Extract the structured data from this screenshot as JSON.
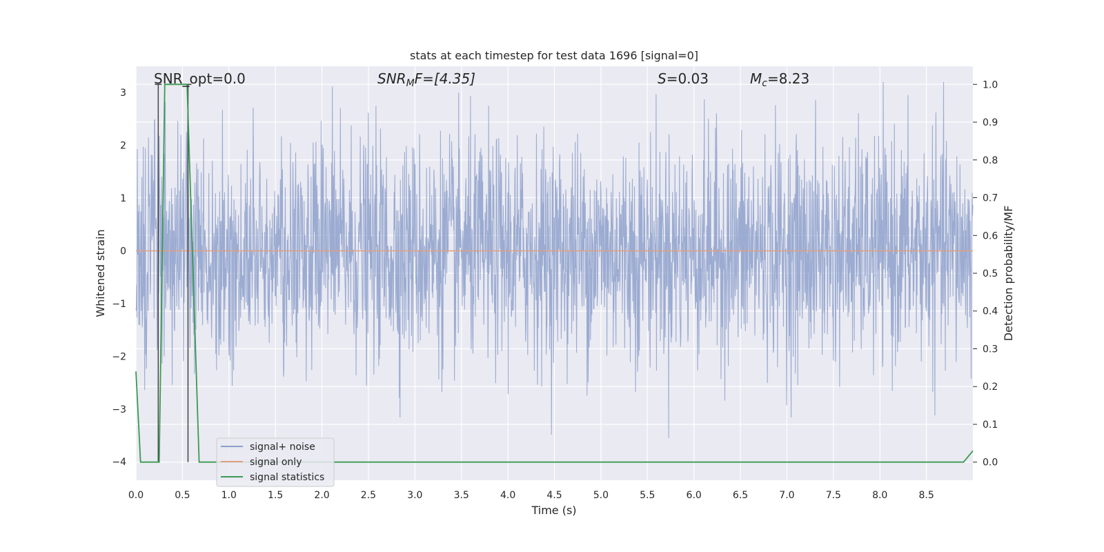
{
  "chart_data": {
    "type": "line",
    "title": "stats at each timestep for test data 1696 [signal=0]",
    "xlabel": "Time (s)",
    "ylabel_left": "Whitened strain",
    "ylabel_right": "Detection probability/MF",
    "xlim": [
      0.0,
      9.0
    ],
    "ylim_left": [
      -4.35,
      3.5
    ],
    "ylim_right": [
      -0.048,
      1.048
    ],
    "x_ticks": [
      "0.0",
      "0.5",
      "1.0",
      "1.5",
      "2.0",
      "2.5",
      "3.0",
      "3.5",
      "4.0",
      "4.5",
      "5.0",
      "5.5",
      "6.0",
      "6.5",
      "7.0",
      "7.5",
      "8.0",
      "8.5"
    ],
    "y_ticks_left": [
      "3",
      "2",
      "1",
      "0",
      "−1",
      "−2",
      "−3",
      "−4"
    ],
    "y_ticks_right": [
      "1.0",
      "0.9",
      "0.8",
      "0.7",
      "0.6",
      "0.5",
      "0.4",
      "0.3",
      "0.2",
      "0.1",
      "0.0"
    ],
    "grid": true,
    "legend_position": "lower-left",
    "annotations": {
      "snr_opt": "SNR_opt=0.0",
      "snr_mf_base": "SNR",
      "snr_mf_sub": "M",
      "snr_mf_rest": "F=[4.35]",
      "s_label": "S",
      "s_value": "=0.03",
      "mc_base": "M",
      "mc_sub": "c",
      "mc_value": "=8.23"
    },
    "series": [
      {
        "name": "signal+ noise",
        "color": "#8da0cb",
        "note": "whitened strain noise, amplitude mostly within ±1.5 with spikes to about ±3.2"
      },
      {
        "name": "signal only",
        "color": "#e1a07e",
        "values_constant": 0.0
      },
      {
        "name": "signal statistics",
        "color": "#3a9a50",
        "x": [
          0.0,
          0.05,
          0.25,
          0.31,
          0.55,
          0.68,
          8.9,
          9.0
        ],
        "y": [
          0.24,
          0.0,
          0.0,
          1.0,
          1.0,
          0.0,
          0.0,
          0.03
        ]
      }
    ],
    "vertical_markers": {
      "color": "#444444",
      "x": [
        0.24,
        0.56
      ]
    }
  }
}
